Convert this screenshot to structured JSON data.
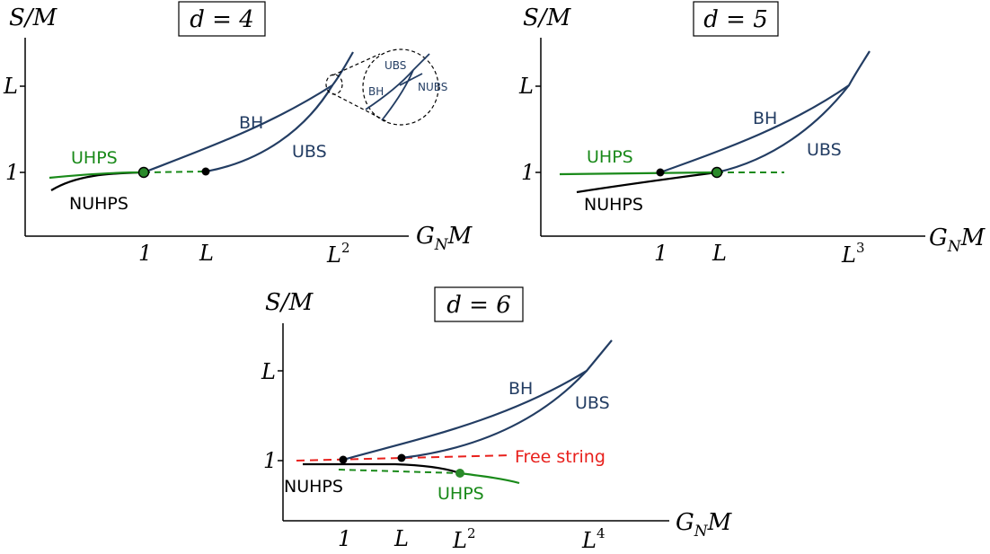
{
  "colors": {
    "bh": "#233d63",
    "uhps": "#1a8a1a",
    "nuhps": "#000000",
    "free_string": "#e8201c",
    "axis": "#000000"
  },
  "panels": [
    {
      "title": "d = 4",
      "ylabel": "S/M",
      "xlabel": "G",
      "xlabel_sub": "N",
      "xlabel_tail": "M",
      "yticks": [
        "L",
        "1"
      ],
      "xticks": [
        "1",
        "L",
        "L",
        "2"
      ],
      "labels": {
        "bh": "BH",
        "ubs": "UBS",
        "uhps": "UHPS",
        "nuhps": "NUHPS"
      },
      "inset": {
        "ubs": "UBS",
        "bh": "BH",
        "nubs": "NUBS"
      }
    },
    {
      "title": "d = 5",
      "ylabel": "S/M",
      "xlabel": "G",
      "xlabel_sub": "N",
      "xlabel_tail": "M",
      "yticks": [
        "L",
        "1"
      ],
      "xticks": [
        "1",
        "L",
        "L",
        "3"
      ],
      "labels": {
        "bh": "BH",
        "ubs": "UBS",
        "uhps": "UHPS",
        "nuhps": "NUHPS"
      }
    },
    {
      "title": "d = 6",
      "ylabel": "S/M",
      "xlabel": "G",
      "xlabel_sub": "N",
      "xlabel_tail": "M",
      "yticks": [
        "L",
        "1"
      ],
      "xticks": [
        "1",
        "L",
        "L",
        "2",
        "L",
        "4"
      ],
      "labels": {
        "bh": "BH",
        "ubs": "UBS",
        "uhps": "UHPS",
        "nuhps": "NUHPS",
        "free_string": "Free string"
      }
    }
  ]
}
